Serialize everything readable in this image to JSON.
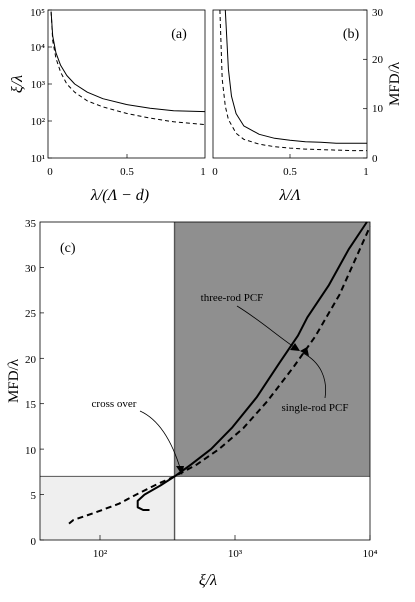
{
  "chart_data": [
    {
      "type": "line",
      "panel": "(a)",
      "xlabel": "λ/(Λ − d)",
      "ylabel": "ξ/λ",
      "yscale": "log",
      "xlim": [
        0,
        1
      ],
      "ylim": [
        10,
        100000
      ],
      "xticks": [
        "0",
        "0.5",
        "1"
      ],
      "yticks": [
        "10¹",
        "10²",
        "10³",
        "10⁴",
        "10⁵"
      ],
      "series": [
        {
          "style": "solid",
          "x": [
            0.02,
            0.03,
            0.05,
            0.08,
            0.12,
            0.17,
            0.25,
            0.35,
            0.5,
            0.65,
            0.8,
            1.0
          ],
          "y": [
            90000,
            20000,
            7000,
            3200,
            1700,
            1000,
            600,
            400,
            280,
            220,
            190,
            180
          ]
        },
        {
          "style": "dashed",
          "x": [
            0.02,
            0.03,
            0.05,
            0.08,
            0.12,
            0.17,
            0.25,
            0.35,
            0.5,
            0.65,
            0.8,
            1.0
          ],
          "y": [
            90000,
            15000,
            5000,
            2100,
            1000,
            600,
            350,
            240,
            160,
            120,
            95,
            80
          ]
        }
      ]
    },
    {
      "type": "line",
      "panel": "(b)",
      "xlabel": "λ/Λ",
      "ylabel": "MFD/λ",
      "xlim": [
        0,
        1
      ],
      "ylim": [
        0,
        30
      ],
      "xticks": [
        "0",
        "0.5",
        "1"
      ],
      "yticks": [
        "0",
        "10",
        "20",
        "30"
      ],
      "series": [
        {
          "style": "solid",
          "x": [
            0.08,
            0.1,
            0.12,
            0.15,
            0.2,
            0.3,
            0.4,
            0.5,
            0.6,
            0.7,
            0.8,
            0.9,
            1.0
          ],
          "y": [
            30,
            18,
            12.5,
            9.0,
            6.5,
            4.8,
            4.0,
            3.6,
            3.3,
            3.2,
            3.0,
            3.0,
            3.0
          ]
        },
        {
          "style": "dashed",
          "x": [
            0.045,
            0.06,
            0.08,
            0.1,
            0.15,
            0.2,
            0.3,
            0.4,
            0.5,
            0.6,
            0.7,
            0.8,
            0.9,
            1.0
          ],
          "y": [
            30,
            16,
            10.5,
            7.8,
            5.0,
            3.8,
            2.8,
            2.3,
            2.0,
            1.8,
            1.7,
            1.6,
            1.5,
            1.5
          ]
        }
      ]
    },
    {
      "type": "line",
      "panel": "(c)",
      "xlabel": "ξ/λ",
      "ylabel": "MFD/λ",
      "xscale": "log",
      "xlim": [
        40,
        10000
      ],
      "ylim": [
        0,
        35
      ],
      "xticks": [
        "10²",
        "10³",
        "10⁴"
      ],
      "yticks": [
        "0",
        "5",
        "10",
        "15",
        "20",
        "25",
        "30",
        "35"
      ],
      "regions": [
        {
          "shade": "dark",
          "x": [
            380,
            10000
          ],
          "y": [
            7,
            35
          ]
        },
        {
          "shade": "light",
          "x": [
            40,
            380
          ],
          "y": [
            0,
            7
          ]
        }
      ],
      "guide_lines": {
        "x": 380,
        "y": 7
      },
      "series": [
        {
          "style": "solid",
          "x": [
            250,
            225,
            205,
            205,
            230,
            300,
            380,
            500,
            700,
            1000,
            1500,
            2200,
            3000,
            3500,
            5000,
            7000,
            9500
          ],
          "y": [
            3.3,
            3.3,
            3.6,
            4.3,
            5.0,
            6.0,
            7.0,
            8.3,
            10.0,
            12.4,
            15.7,
            19.5,
            22.5,
            24.5,
            28.0,
            32.0,
            35.0
          ]
        },
        {
          "style": "dashed",
          "x": [
            65,
            70,
            100,
            150,
            200,
            280,
            380,
            550,
            800,
            1200,
            1800,
            2800,
            4000,
            6000,
            10000
          ],
          "y": [
            1.8,
            2.2,
            3.0,
            4.0,
            5.0,
            6.1,
            7.0,
            8.3,
            10.0,
            12.3,
            15.3,
            19.1,
            22.4,
            27.0,
            34.5
          ]
        }
      ],
      "annotations": [
        "cross over",
        "three-rod PCF",
        "single-rod PCF"
      ]
    }
  ]
}
